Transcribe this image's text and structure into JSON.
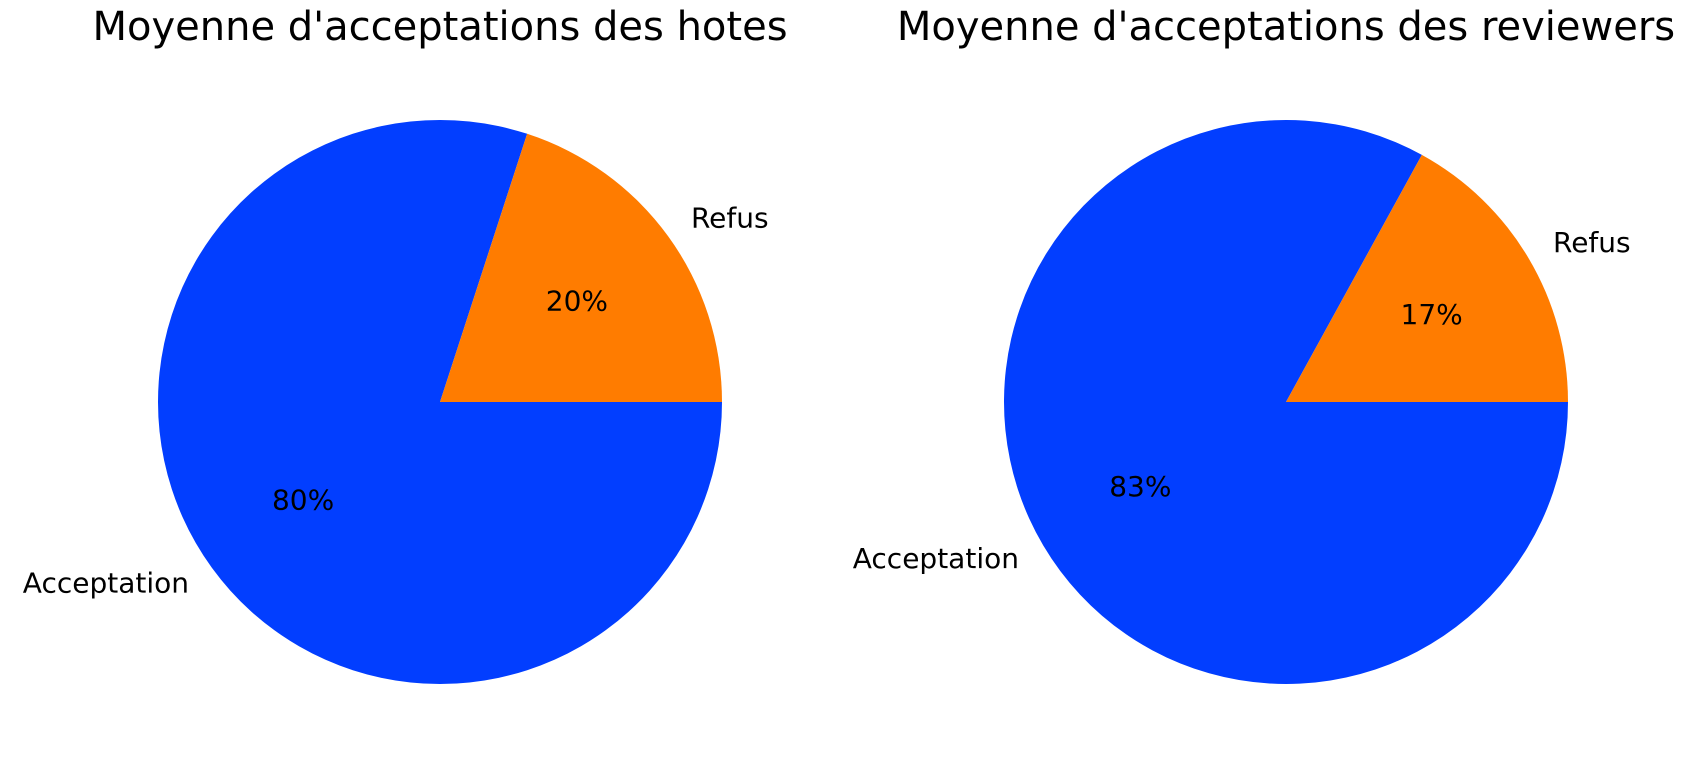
{
  "chart_data": [
    {
      "type": "pie",
      "title": "Moyenne d'acceptations des hotes",
      "labels": [
        "Acceptation",
        "Refus"
      ],
      "values": [
        80,
        20
      ],
      "value_labels": [
        "80%",
        "20%"
      ],
      "colors": [
        "#023eff",
        "#ff7c00"
      ]
    },
    {
      "type": "pie",
      "title": "Moyenne d'acceptations des reviewers",
      "labels": [
        "Acceptation",
        "Refus"
      ],
      "values": [
        83,
        17
      ],
      "value_labels": [
        "83%",
        "17%"
      ],
      "colors": [
        "#023eff",
        "#ff7c00"
      ]
    }
  ]
}
